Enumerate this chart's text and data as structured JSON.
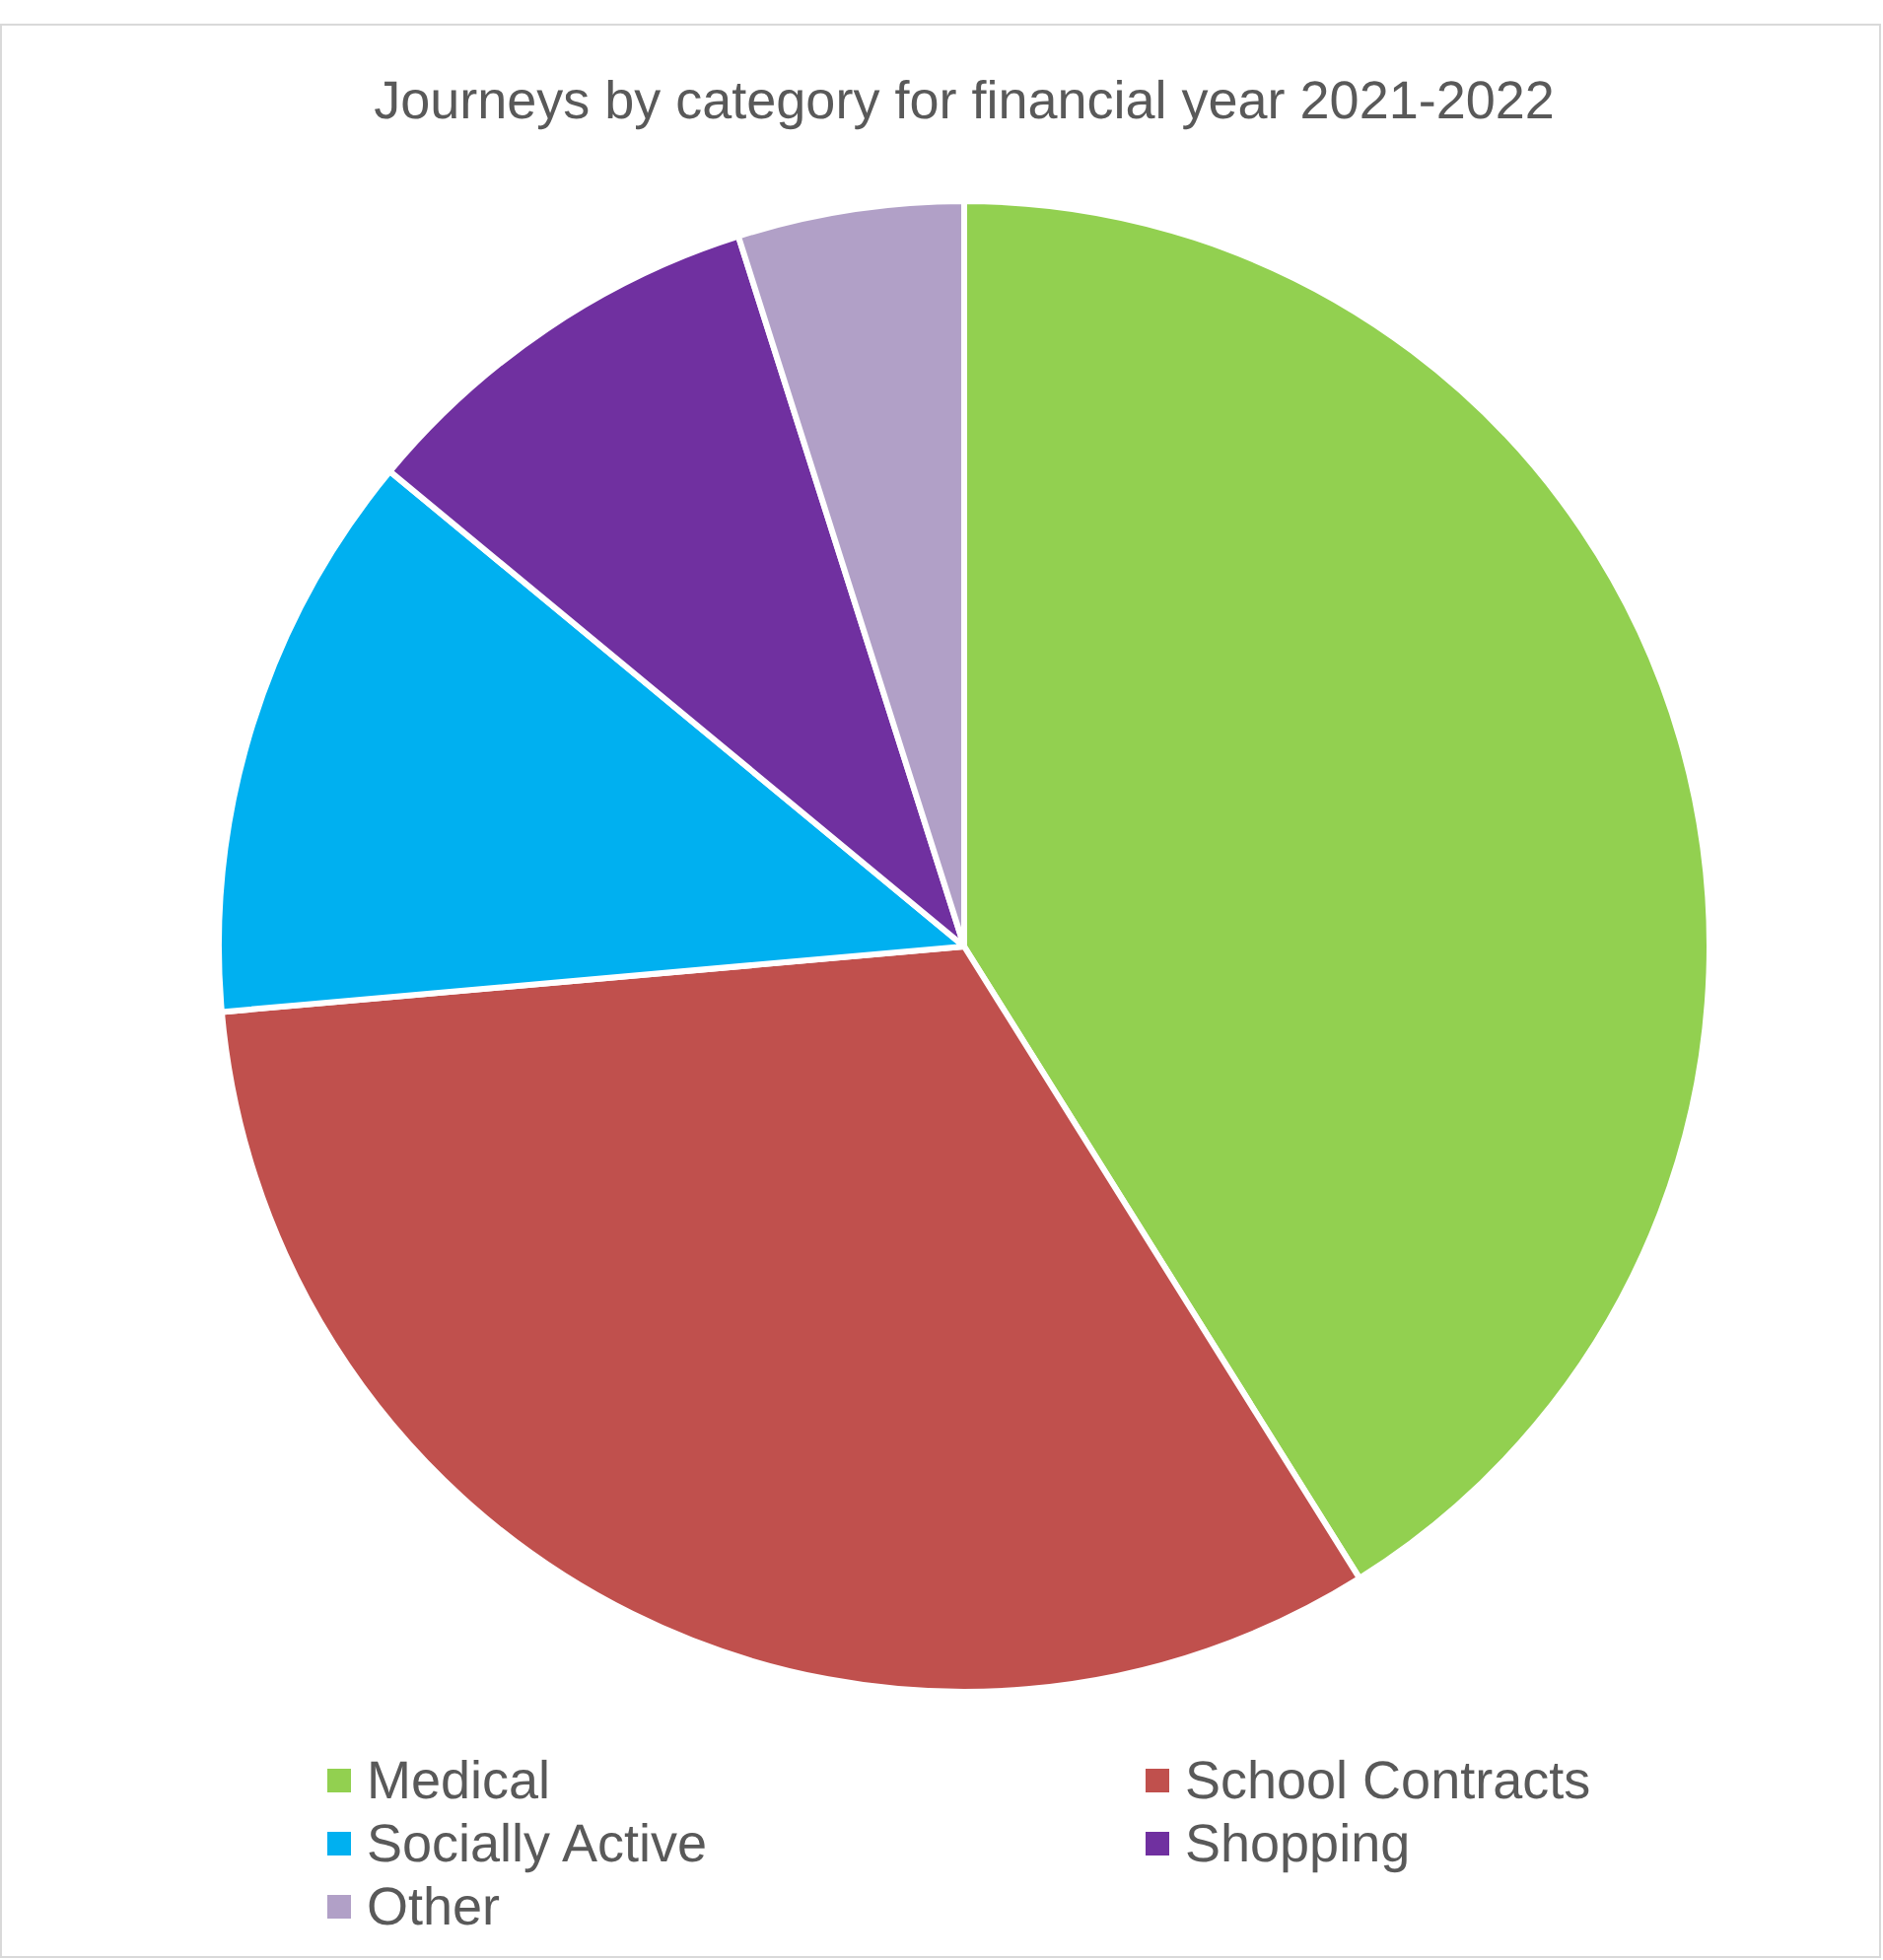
{
  "chart_data": {
    "type": "pie",
    "title": "Journeys by category for financial year 2021-2022",
    "categories": [
      "Medical",
      "School Contracts",
      "Socially Active",
      "Shopping",
      "Other"
    ],
    "values": [
      41.1,
      32.5,
      12.4,
      9.1,
      4.9
    ],
    "colors": [
      "#92d050",
      "#c0504d",
      "#00b0f0",
      "#7030a0",
      "#b1a0c7"
    ],
    "legend": "bottom"
  }
}
